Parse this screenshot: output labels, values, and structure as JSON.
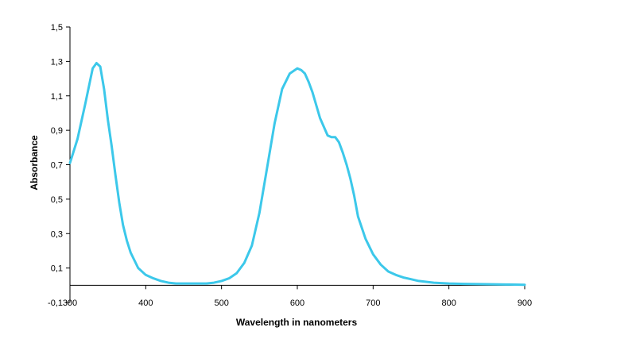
{
  "chart_data": {
    "type": "line",
    "title": "",
    "xlabel": "Wavelength in nanometers",
    "ylabel": "Absorbance",
    "xlim": [
      300,
      900
    ],
    "ylim": [
      -0.1,
      1.5
    ],
    "x_ticks": [
      300,
      400,
      500,
      600,
      700,
      800,
      900
    ],
    "x_tick_labels": [
      "300",
      "400",
      "500",
      "600",
      "700",
      "800",
      "900"
    ],
    "y_ticks": [
      -0.1,
      0.1,
      0.3,
      0.5,
      0.7,
      0.9,
      1.1,
      1.3,
      1.5
    ],
    "y_tick_labels": [
      "-0,1",
      "0,1",
      "0,3",
      "0,5",
      "0,7",
      "0,9",
      "1,1",
      "1,3",
      "1,5"
    ],
    "grid": false,
    "legend": "none",
    "x_axis_crosses_y_at": 0,
    "series": [
      {
        "color": "#3cc8ea",
        "x": [
          300,
          310,
          320,
          330,
          335,
          340,
          345,
          350,
          355,
          360,
          365,
          370,
          375,
          380,
          390,
          400,
          410,
          420,
          430,
          440,
          450,
          460,
          470,
          480,
          490,
          500,
          510,
          520,
          530,
          540,
          550,
          560,
          570,
          580,
          590,
          600,
          605,
          610,
          615,
          620,
          630,
          640,
          645,
          650,
          655,
          660,
          665,
          670,
          675,
          680,
          690,
          700,
          710,
          720,
          730,
          740,
          750,
          760,
          770,
          780,
          800,
          820,
          850,
          880,
          900
        ],
        "y": [
          0.71,
          0.85,
          1.05,
          1.26,
          1.29,
          1.27,
          1.14,
          0.96,
          0.81,
          0.64,
          0.48,
          0.35,
          0.26,
          0.19,
          0.1,
          0.06,
          0.04,
          0.025,
          0.015,
          0.01,
          0.01,
          0.01,
          0.01,
          0.01,
          0.015,
          0.025,
          0.04,
          0.07,
          0.13,
          0.23,
          0.42,
          0.68,
          0.94,
          1.14,
          1.23,
          1.26,
          1.25,
          1.23,
          1.18,
          1.12,
          0.97,
          0.87,
          0.86,
          0.86,
          0.83,
          0.77,
          0.7,
          0.62,
          0.52,
          0.4,
          0.27,
          0.18,
          0.12,
          0.08,
          0.06,
          0.045,
          0.035,
          0.025,
          0.02,
          0.015,
          0.01,
          0.008,
          0.006,
          0.004,
          0.003
        ]
      }
    ]
  }
}
